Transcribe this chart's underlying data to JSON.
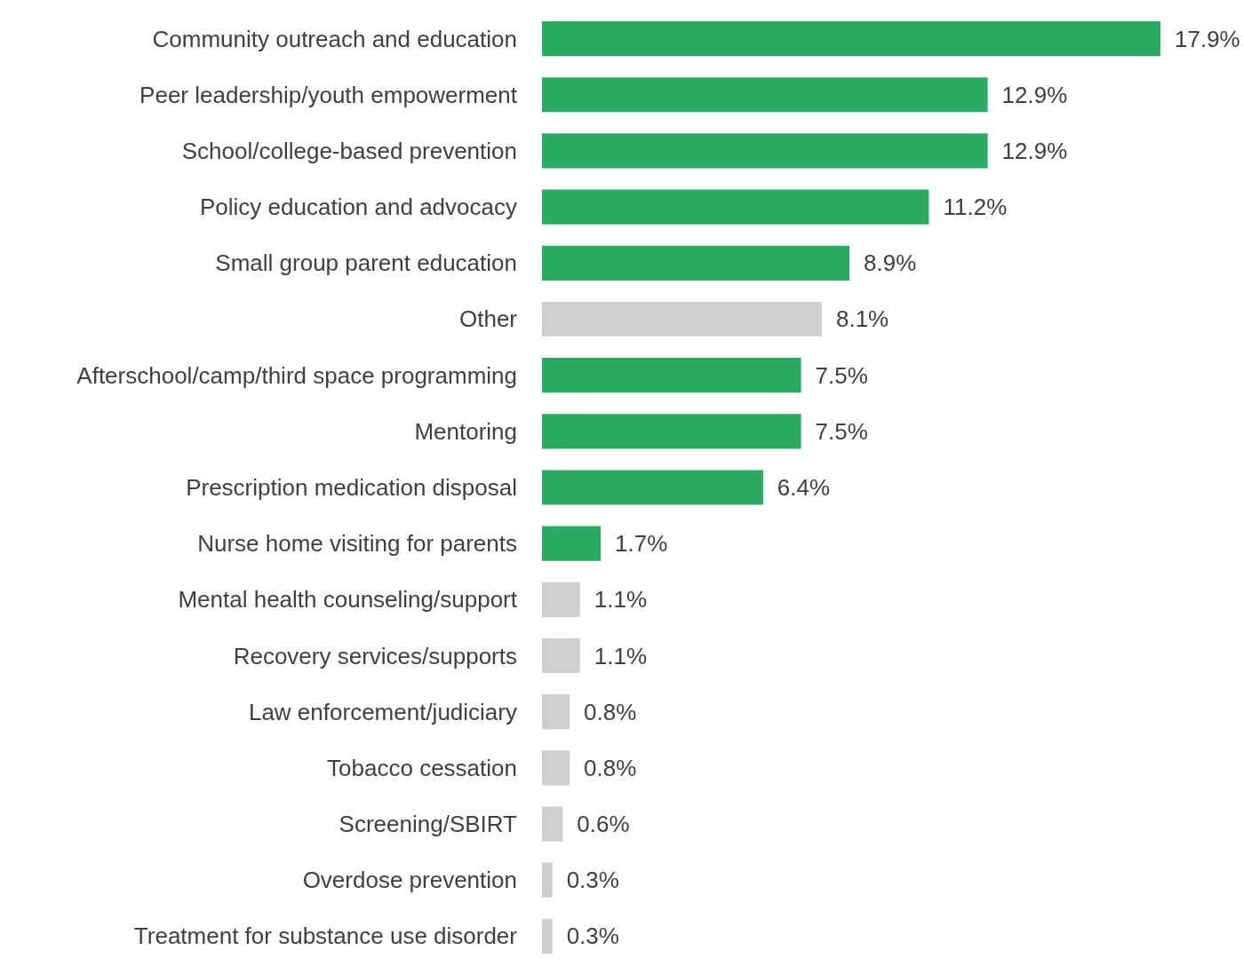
{
  "chart_data": {
    "type": "bar",
    "orientation": "horizontal",
    "categories": [
      "Community outreach and education",
      "Peer leadership/youth empowerment",
      "School/college-based prevention",
      "Policy education and advocacy",
      "Small group parent education",
      "Other",
      "Afterschool/camp/third space programming",
      "Mentoring",
      "Prescription medication disposal",
      "Nurse home visiting for parents",
      "Mental health counseling/support",
      "Recovery services/supports",
      "Law enforcement/judiciary",
      "Tobacco cessation",
      "Screening/SBIRT",
      "Overdose prevention",
      "Treatment for substance use disorder"
    ],
    "values": [
      17.9,
      12.9,
      12.9,
      11.2,
      8.9,
      8.1,
      7.5,
      7.5,
      6.4,
      1.7,
      1.1,
      1.1,
      0.8,
      0.8,
      0.6,
      0.3,
      0.3
    ],
    "value_labels": [
      "17.9%",
      "12.9%",
      "12.9%",
      "11.2%",
      "8.9%",
      "8.1%",
      "7.5%",
      "7.5%",
      "6.4%",
      "1.7%",
      "1.1%",
      "1.1%",
      "0.8%",
      "0.8%",
      "0.6%",
      "0.3%",
      "0.3%"
    ],
    "colors": [
      "#2aab62",
      "#2aab62",
      "#2aab62",
      "#2aab62",
      "#2aab62",
      "#d0cece",
      "#2aab62",
      "#2aab62",
      "#2aab62",
      "#2aab62",
      "#d0cece",
      "#d0cece",
      "#d0cece",
      "#d0cece",
      "#d0cece",
      "#d0cece",
      "#d0cece"
    ]
  }
}
